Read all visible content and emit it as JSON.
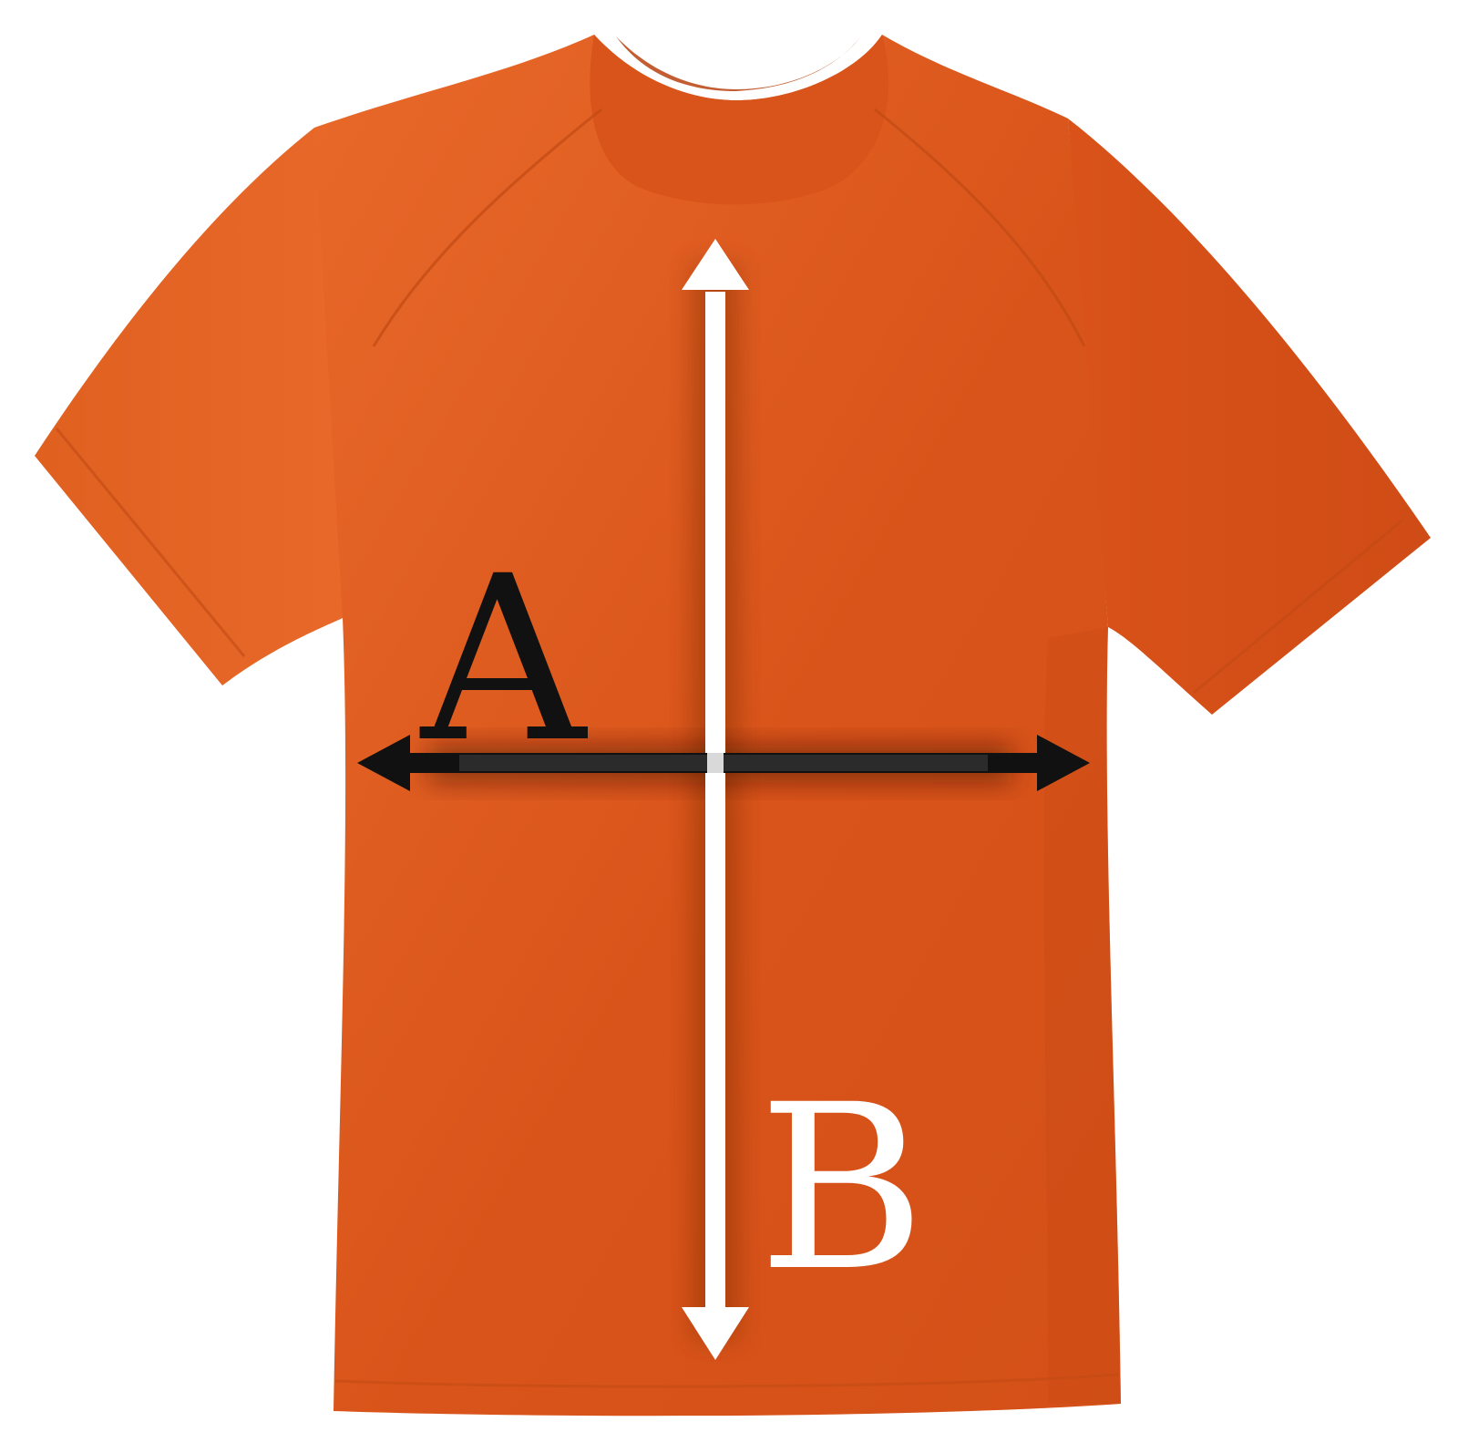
{
  "diagram": {
    "labels": {
      "width": "A",
      "length": "B"
    },
    "colors": {
      "shirt": "#d9541a",
      "shirt_light": "#e8692a",
      "shirt_shadow": "#b8420f",
      "background": "#ffffff",
      "arrow_a": "#111111",
      "arrow_b": "#ffffff",
      "label_a": "#111111",
      "label_b": "#ffffff"
    },
    "icons": {
      "garment": "tshirt-icon",
      "width_arrow": "double-arrow-horizontal-icon",
      "length_arrow": "double-arrow-vertical-icon"
    }
  }
}
